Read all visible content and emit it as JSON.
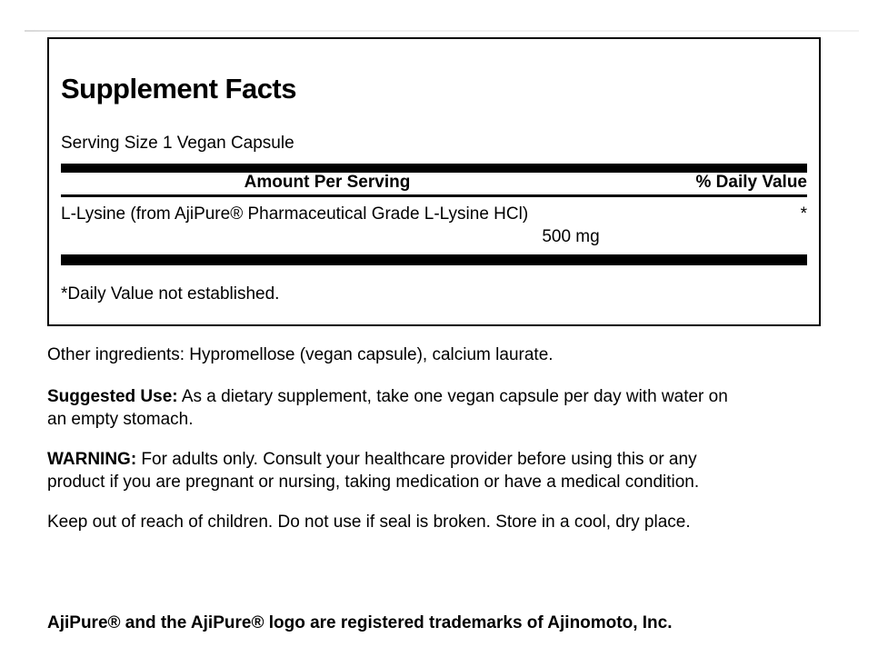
{
  "colors": {
    "text": "#000000",
    "background": "#ffffff",
    "rule": "#000000"
  },
  "panel": {
    "title": "Supplement Facts",
    "serving_size": "Serving Size 1 Vegan Capsule",
    "columns": {
      "amount": "Amount Per Serving",
      "daily_value": "% Daily Value"
    },
    "rows": [
      {
        "name": "L-Lysine (from AjiPure® Pharmaceutical Grade L-Lysine HCl)",
        "amount": "500 mg",
        "daily_value": "*"
      }
    ],
    "footnote": "*Daily Value not established."
  },
  "details": {
    "other_ingredients": "Other ingredients: Hypromellose (vegan capsule), calcium laurate.",
    "suggested_use": {
      "label": "Suggested Use:",
      "text": " As a dietary supplement, take one vegan capsule per day with water on\nan empty stomach."
    },
    "warning": {
      "label": "WARNING:",
      "text": " For adults only. Consult your healthcare provider before using this or any\nproduct if you are pregnant or nursing, taking medication or have a medical condition."
    },
    "storage": "Keep out of reach of children. Do not use if seal is broken. Store in a cool, dry place.",
    "trademark": "AjiPure® and the AjiPure® logo are registered trademarks of Ajinomoto, Inc."
  }
}
